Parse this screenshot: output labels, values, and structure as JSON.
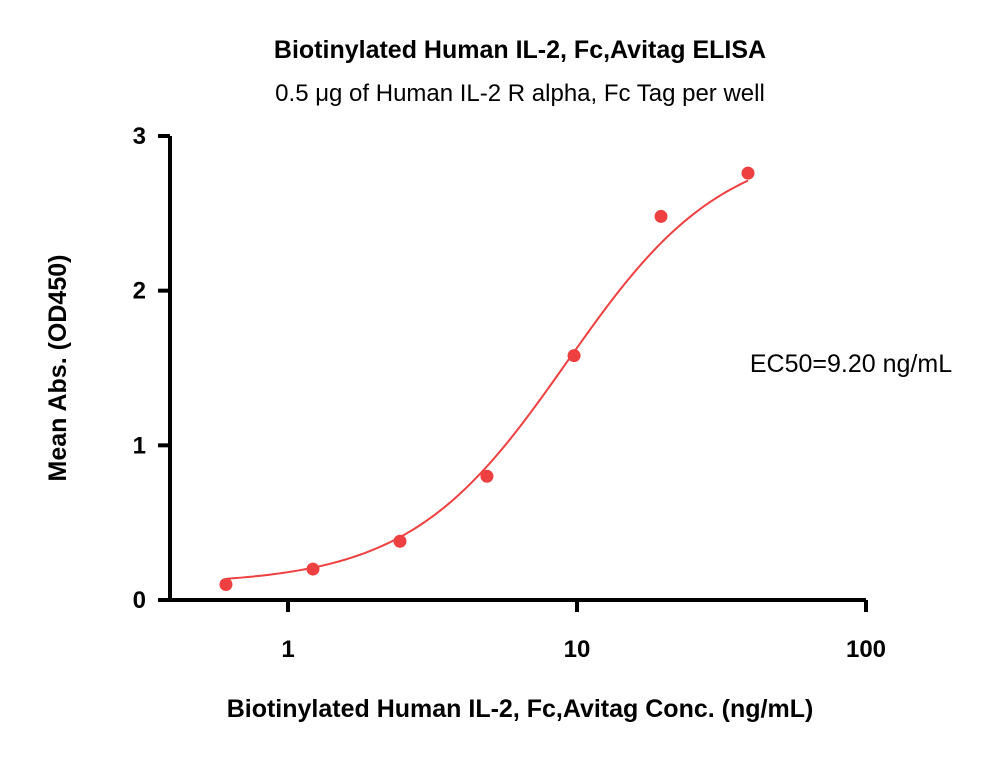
{
  "chart_data": {
    "type": "scatter",
    "title": "Biotinylated Human IL-2, Fc,Avitag ELISA",
    "subtitle": "0.5 μg of Human IL-2 R alpha, Fc Tag per well",
    "xlabel": "Biotinylated Human IL-2, Fc,Avitag Conc. (ng/mL)",
    "ylabel": "Mean Abs. (OD450)",
    "x_scale": "log",
    "xlim": [
      0.3,
      100
    ],
    "ylim": [
      0,
      3
    ],
    "x_ticks": [
      {
        "value": 1,
        "label": "1"
      },
      {
        "value": 10,
        "label": "10"
      },
      {
        "value": 100,
        "label": "100"
      }
    ],
    "y_ticks": [
      {
        "value": 0,
        "label": "0"
      },
      {
        "value": 1,
        "label": "1"
      },
      {
        "value": 2,
        "label": "2"
      },
      {
        "value": 3,
        "label": "3"
      }
    ],
    "grid": false,
    "color": "#ee4040",
    "points": [
      {
        "x": 0.61,
        "y": 0.1
      },
      {
        "x": 1.22,
        "y": 0.2
      },
      {
        "x": 2.44,
        "y": 0.38
      },
      {
        "x": 4.88,
        "y": 0.8
      },
      {
        "x": 9.77,
        "y": 1.58
      },
      {
        "x": 19.53,
        "y": 2.48
      },
      {
        "x": 39.06,
        "y": 2.76
      }
    ],
    "fit": {
      "model": "4PL",
      "bottom": 0.1,
      "top": 2.97,
      "ec50": 9.2,
      "hill": 1.6,
      "x_range": [
        0.61,
        39.06
      ]
    },
    "annotation": "EC50=9.20 ng/mL"
  }
}
